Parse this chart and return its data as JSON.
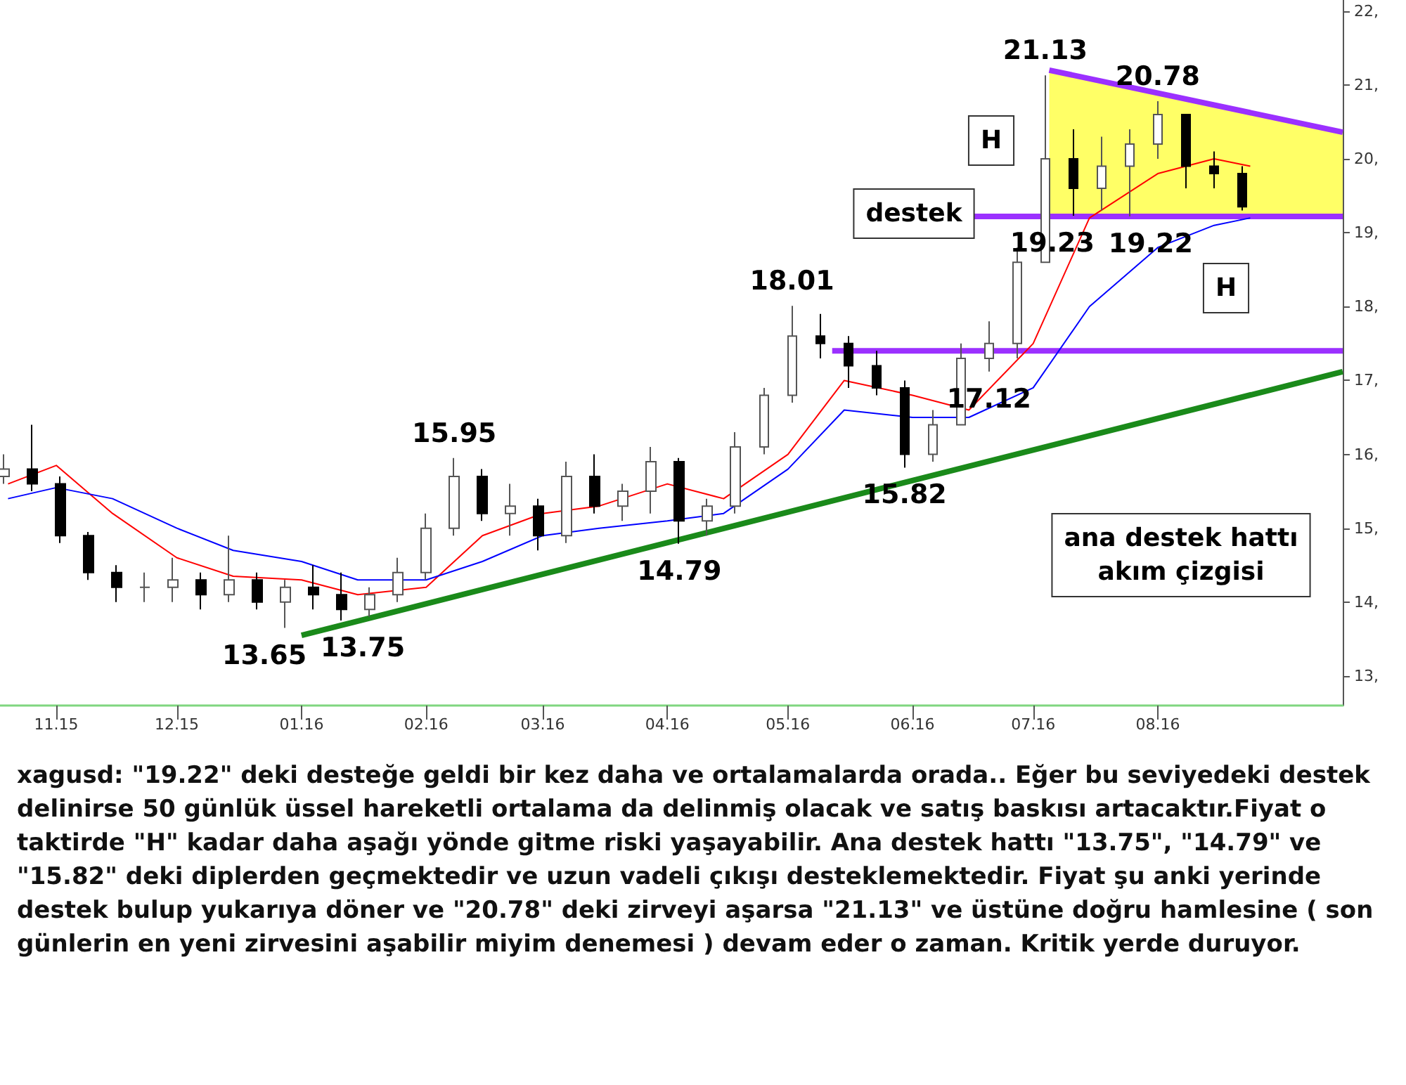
{
  "chart_data": {
    "type": "candlestick",
    "x": [
      "2015-10-19",
      "2015-10-26",
      "2015-11-02",
      "2015-11-09",
      "2015-11-16",
      "2015-11-23",
      "2015-11-30",
      "2015-12-07",
      "2015-12-14",
      "2015-12-21",
      "2015-12-28",
      "2016-01-04",
      "2016-01-11",
      "2016-01-18",
      "2016-01-25",
      "2016-02-01",
      "2016-02-08",
      "2016-02-15",
      "2016-02-22",
      "2016-02-29",
      "2016-03-07",
      "2016-03-14",
      "2016-03-21",
      "2016-03-28",
      "2016-04-04",
      "2016-04-11",
      "2016-04-18",
      "2016-04-25",
      "2016-05-02",
      "2016-05-09",
      "2016-05-16",
      "2016-05-23",
      "2016-05-30",
      "2016-06-06",
      "2016-06-13",
      "2016-06-20",
      "2016-06-27",
      "2016-07-04",
      "2016-07-11",
      "2016-07-18",
      "2016-07-25",
      "2016-08-01",
      "2016-08-08",
      "2016-08-15",
      "2016-08-22"
    ],
    "ohlc": [
      [
        15.7,
        16.0,
        15.6,
        15.8
      ],
      [
        15.8,
        16.4,
        15.5,
        15.6
      ],
      [
        15.6,
        15.7,
        14.8,
        14.9
      ],
      [
        14.9,
        14.95,
        14.3,
        14.4
      ],
      [
        14.4,
        14.5,
        14.0,
        14.2
      ],
      [
        14.2,
        14.4,
        14.0,
        14.2
      ],
      [
        14.2,
        14.6,
        14.0,
        14.3
      ],
      [
        14.3,
        14.4,
        13.9,
        14.1
      ],
      [
        14.1,
        14.9,
        14.0,
        14.3
      ],
      [
        14.3,
        14.4,
        13.9,
        14.0
      ],
      [
        14.0,
        14.3,
        13.65,
        14.2
      ],
      [
        14.2,
        14.5,
        13.9,
        14.1
      ],
      [
        14.1,
        14.4,
        13.75,
        13.9
      ],
      [
        13.9,
        14.2,
        13.8,
        14.1
      ],
      [
        14.1,
        14.6,
        14.0,
        14.4
      ],
      [
        14.4,
        15.2,
        14.3,
        15.0
      ],
      [
        15.0,
        15.95,
        14.9,
        15.7
      ],
      [
        15.7,
        15.8,
        15.1,
        15.2
      ],
      [
        15.2,
        15.6,
        14.9,
        15.3
      ],
      [
        15.3,
        15.4,
        14.7,
        14.9
      ],
      [
        14.9,
        15.9,
        14.8,
        15.7
      ],
      [
        15.7,
        16.0,
        15.2,
        15.3
      ],
      [
        15.3,
        15.6,
        15.1,
        15.5
      ],
      [
        15.5,
        16.1,
        15.2,
        15.9
      ],
      [
        15.9,
        15.95,
        14.79,
        15.1
      ],
      [
        15.1,
        15.4,
        14.9,
        15.3
      ],
      [
        15.3,
        16.3,
        15.2,
        16.1
      ],
      [
        16.1,
        16.9,
        16.0,
        16.8
      ],
      [
        16.8,
        18.01,
        16.7,
        17.6
      ],
      [
        17.6,
        17.9,
        17.3,
        17.5
      ],
      [
        17.5,
        17.6,
        16.9,
        17.2
      ],
      [
        17.2,
        17.4,
        16.8,
        16.9
      ],
      [
        16.9,
        17.0,
        15.82,
        16.0
      ],
      [
        16.0,
        16.6,
        15.9,
        16.4
      ],
      [
        16.4,
        17.5,
        16.4,
        17.3
      ],
      [
        17.3,
        17.8,
        17.12,
        17.5
      ],
      [
        17.5,
        18.8,
        17.3,
        18.6
      ],
      [
        18.6,
        21.13,
        18.6,
        20.0
      ],
      [
        20.0,
        20.4,
        19.23,
        19.6
      ],
      [
        19.6,
        20.3,
        19.3,
        19.9
      ],
      [
        19.9,
        20.4,
        19.22,
        20.2
      ],
      [
        20.2,
        20.78,
        20.0,
        20.6
      ],
      [
        20.6,
        20.6,
        19.6,
        19.9
      ],
      [
        19.9,
        20.1,
        19.6,
        19.8
      ],
      [
        19.8,
        19.9,
        19.3,
        19.35
      ]
    ],
    "series": [
      {
        "type": "line",
        "color": "#ff0000",
        "x": [
          "2015-10-20",
          "2015-11-01",
          "2015-11-15",
          "2015-12-01",
          "2015-12-15",
          "2016-01-01",
          "2016-01-15",
          "2016-02-01",
          "2016-02-15",
          "2016-03-01",
          "2016-03-15",
          "2016-04-01",
          "2016-04-15",
          "2016-05-01",
          "2016-05-15",
          "2016-06-01",
          "2016-06-15",
          "2016-07-01",
          "2016-07-15",
          "2016-08-01",
          "2016-08-15",
          "2016-08-24"
        ],
        "values": [
          15.6,
          15.85,
          15.2,
          14.6,
          14.35,
          14.3,
          14.1,
          14.2,
          14.9,
          15.2,
          15.3,
          15.6,
          15.4,
          16.0,
          17.0,
          16.8,
          16.6,
          17.5,
          19.2,
          19.8,
          20.0,
          19.9
        ]
      },
      {
        "type": "line",
        "color": "#0000ff",
        "x": [
          "2015-10-20",
          "2015-11-01",
          "2015-11-15",
          "2015-12-01",
          "2015-12-15",
          "2016-01-01",
          "2016-01-15",
          "2016-02-01",
          "2016-02-15",
          "2016-03-01",
          "2016-03-15",
          "2016-04-01",
          "2016-04-15",
          "2016-05-01",
          "2016-05-15",
          "2016-06-01",
          "2016-06-15",
          "2016-07-01",
          "2016-07-15",
          "2016-08-01",
          "2016-08-15",
          "2016-08-24"
        ],
        "values": [
          15.4,
          15.55,
          15.4,
          15.0,
          14.7,
          14.55,
          14.3,
          14.3,
          14.55,
          14.9,
          15.0,
          15.1,
          15.2,
          15.8,
          16.6,
          16.5,
          16.5,
          16.9,
          18.0,
          18.8,
          19.1,
          19.2
        ]
      },
      {
        "type": "line",
        "color": "#1a8a1a",
        "x": [
          "2016-01-01",
          "2016-09-16"
        ],
        "values": [
          13.55,
          17.12
        ]
      },
      {
        "type": "line",
        "color": "#9b30ff",
        "x": [
          "2016-05-12",
          "2016-09-16"
        ],
        "values": [
          17.4,
          17.4
        ]
      },
      {
        "type": "line",
        "color": "#9b30ff",
        "x": [
          "2016-06-16",
          "2016-09-16"
        ],
        "values": [
          19.22,
          19.22
        ]
      },
      {
        "type": "line",
        "color": "#9b30ff",
        "x": [
          "2016-07-05",
          "2016-09-16"
        ],
        "values": [
          21.2,
          20.36
        ],
        "lower": [
          19.22,
          19.22
        ],
        "upper": [
          21.2,
          20.36
        ]
      }
    ],
    "xlim": [
      "2015-10-18",
      "2016-09-16"
    ],
    "xticks": [
      {
        "value": "2015-11-01",
        "label": "11.15"
      },
      {
        "value": "2015-12-01",
        "label": "12.15"
      },
      {
        "value": "2016-01-01",
        "label": "01.16"
      },
      {
        "value": "2016-02-01",
        "label": "02.16"
      },
      {
        "value": "2016-03-01",
        "label": "03.16"
      },
      {
        "value": "2016-04-01",
        "label": "04.16"
      },
      {
        "value": "2016-05-01",
        "label": "05.16"
      },
      {
        "value": "2016-06-01",
        "label": "06.16"
      },
      {
        "value": "2016-07-01",
        "label": "07.16"
      },
      {
        "value": "2016-08-01",
        "label": "08.16"
      }
    ],
    "ylim": [
      12.6,
      22.15
    ],
    "yticks": [
      {
        "value": 13,
        "label": "13,"
      },
      {
        "value": 14,
        "label": "14,"
      },
      {
        "value": 15,
        "label": "15,"
      },
      {
        "value": 16,
        "label": "16,"
      },
      {
        "value": 17,
        "label": "17,"
      },
      {
        "value": 18,
        "label": "18,"
      },
      {
        "value": 19,
        "label": "19,"
      },
      {
        "value": 20,
        "label": "20,"
      },
      {
        "value": 21,
        "label": "21,"
      },
      {
        "value": 22,
        "label": "22,"
      }
    ],
    "grid": false,
    "annotations": [
      {
        "text": "21.13",
        "x": "2016-07-04",
        "y": 21.13
      },
      {
        "text": "20.78",
        "x": "2016-08-01",
        "y": 20.78
      },
      {
        "text": "19.23",
        "x": "2016-07-11",
        "y": 19.23
      },
      {
        "text": "19.22",
        "x": "2016-07-25",
        "y": 19.22
      },
      {
        "text": "18.01",
        "x": "2016-05-02",
        "y": 18.01
      },
      {
        "text": "17.12",
        "x": "2016-06-20",
        "y": 17.12
      },
      {
        "text": "15.95",
        "x": "2016-02-08",
        "y": 15.95
      },
      {
        "text": "15.82",
        "x": "2016-05-30",
        "y": 15.82
      },
      {
        "text": "14.79",
        "x": "2016-04-04",
        "y": 14.79
      },
      {
        "text": "13.65",
        "x": "2015-12-28",
        "y": 13.65
      },
      {
        "text": "13.75",
        "x": "2016-01-11",
        "y": 13.75
      },
      "destek",
      "H",
      "H",
      "ana destek hattı\nakım çizgisi",
      "xagusd: \"19.22\" deki desteğe geldi bir kez daha ve ortalamalarda orada.. Eğer bu seviyedeki destek delinirse 50 günlük üssel hareketli ortalama da delinmiş olacak ve satış baskısı artacaktır.Fiyat o taktirde \"H\" kadar daha aşağı yönde gitme riski yaşayabilir. Ana destek hattı \"13.75\", \"14.79\" ve \"15.82\" deki diplerden geçmektedir ve uzun vadeli çıkışı desteklemektedir. Fiyat şu anki yerinde destek bulup yukarıya döner ve \"20.78\" deki zirveyi aşarsa \"21.13\" ve üstüne doğru hamlesine ( son günlerin en yeni zirvesini aşabilir miyim denemesi ) devam eder o zaman. Kritik yerde duruyor."
    ]
  }
}
